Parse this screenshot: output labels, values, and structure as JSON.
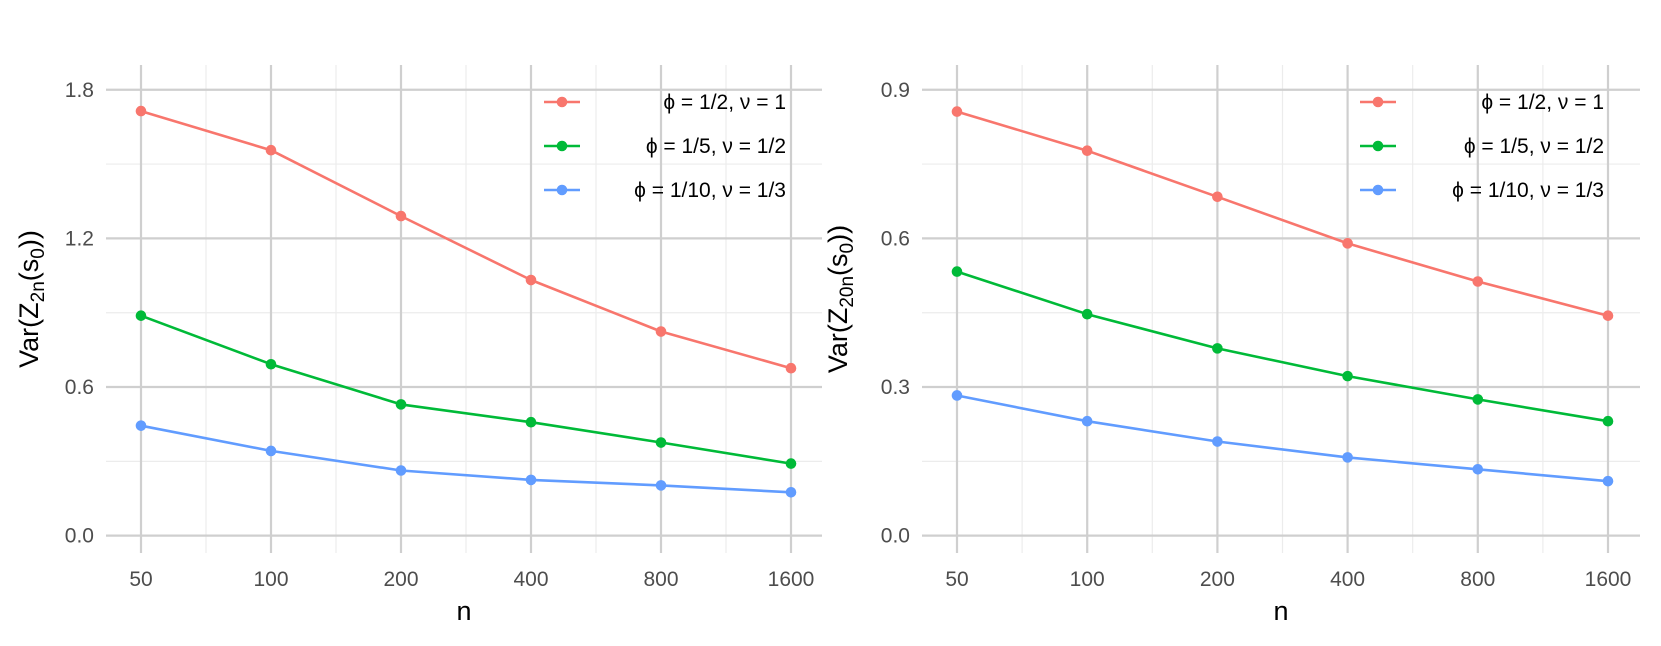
{
  "chart_data": [
    {
      "type": "line",
      "xlabel": "n",
      "ylabel_main": "Var(Z",
      "ylabel_sub1": "2n",
      "ylabel_mid": "(s",
      "ylabel_sub2": "0",
      "ylabel_end": "))",
      "x_scale": "log",
      "categories": [
        "50",
        "100",
        "200",
        "400",
        "800",
        "1600"
      ],
      "x": [
        50,
        100,
        200,
        400,
        800,
        1600
      ],
      "yticks": [
        "0.0",
        "0.6",
        "1.2",
        "1.8"
      ],
      "ylim": [
        -0.07,
        1.9
      ],
      "grid": true,
      "legend_position": "top-right",
      "series": [
        {
          "name": "ϕ = 1/2, ν = 1",
          "color": "#F8766D",
          "values": [
            1.714,
            1.556,
            1.29,
            1.032,
            0.824,
            0.676
          ]
        },
        {
          "name": "ϕ = 1/5, ν = 1/2",
          "color": "#00BA38",
          "values": [
            0.888,
            0.692,
            0.53,
            0.458,
            0.376,
            0.291
          ]
        },
        {
          "name": "ϕ = 1/10, ν = 1/3",
          "color": "#619CFF",
          "values": [
            0.444,
            0.342,
            0.263,
            0.225,
            0.203,
            0.175
          ]
        }
      ]
    },
    {
      "type": "line",
      "xlabel": "n",
      "ylabel_main": "Var(Z",
      "ylabel_sub1": "20n",
      "ylabel_mid": "(s",
      "ylabel_sub2": "0",
      "ylabel_end": "))",
      "x_scale": "log",
      "categories": [
        "50",
        "100",
        "200",
        "400",
        "800",
        "1600"
      ],
      "x": [
        50,
        100,
        200,
        400,
        800,
        1600
      ],
      "yticks": [
        "0.0",
        "0.3",
        "0.6",
        "0.9"
      ],
      "ylim": [
        -0.035,
        0.95
      ],
      "grid": true,
      "legend_position": "top-right",
      "series": [
        {
          "name": "ϕ = 1/2, ν = 1",
          "color": "#F8766D",
          "values": [
            0.856,
            0.777,
            0.684,
            0.59,
            0.513,
            0.444
          ]
        },
        {
          "name": "ϕ = 1/5, ν = 1/2",
          "color": "#00BA38",
          "values": [
            0.533,
            0.447,
            0.378,
            0.322,
            0.275,
            0.231
          ]
        },
        {
          "name": "ϕ = 1/10, ν = 1/3",
          "color": "#619CFF",
          "values": [
            0.283,
            0.231,
            0.19,
            0.158,
            0.134,
            0.11
          ]
        }
      ]
    }
  ]
}
